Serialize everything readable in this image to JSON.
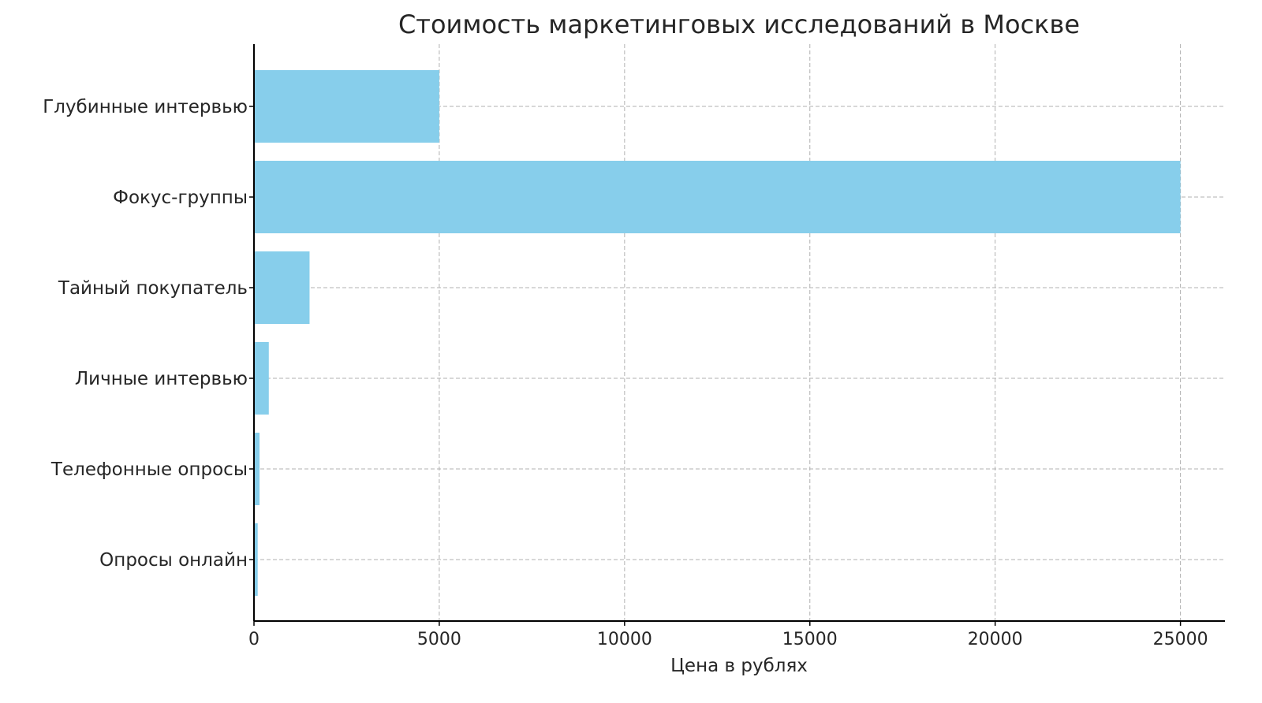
{
  "chart_data": {
    "type": "bar",
    "orientation": "horizontal",
    "title": "Стоимость маркетинговых исследований в Москве",
    "xlabel": "Цена в рублях",
    "ylabel": "",
    "categories": [
      "Глубинные интервью",
      "Фокус-группы",
      "Тайный покупатель",
      "Личные интервью",
      "Телефонные опросы",
      "Опросы онлайн"
    ],
    "values": [
      5000,
      25000,
      1500,
      400,
      150,
      100
    ],
    "xlim": [
      0,
      26200
    ],
    "xticks": [
      0,
      5000,
      10000,
      15000,
      20000,
      25000
    ],
    "grid": true,
    "bar_color": "#87CEEB"
  }
}
